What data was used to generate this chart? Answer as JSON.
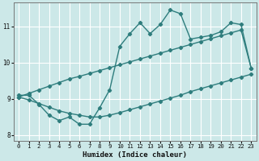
{
  "title": "",
  "xlabel": "Humidex (Indice chaleur)",
  "ylabel": "",
  "background_color": "#cce8e8",
  "grid_color": "#b0d4d4",
  "line_color": "#2e7d7d",
  "x_values": [
    0,
    1,
    2,
    3,
    4,
    5,
    6,
    7,
    8,
    9,
    10,
    11,
    12,
    13,
    14,
    15,
    16,
    17,
    18,
    19,
    20,
    21,
    22,
    23
  ],
  "y_main": [
    9.1,
    9.1,
    8.85,
    8.55,
    8.4,
    8.5,
    8.3,
    8.3,
    8.75,
    9.25,
    10.45,
    10.8,
    11.1,
    10.8,
    11.05,
    11.45,
    11.35,
    10.65,
    10.7,
    10.75,
    10.85,
    11.1,
    11.05,
    9.85
  ],
  "y_upper": [
    9.05,
    9.15,
    9.25,
    9.35,
    9.45,
    9.55,
    9.62,
    9.7,
    9.78,
    9.86,
    9.94,
    10.02,
    10.1,
    10.18,
    10.26,
    10.34,
    10.42,
    10.5,
    10.58,
    10.66,
    10.74,
    10.82,
    10.9,
    9.85
  ],
  "y_lower": [
    9.05,
    8.97,
    8.87,
    8.77,
    8.67,
    8.6,
    8.55,
    8.5,
    8.5,
    8.55,
    8.62,
    8.7,
    8.78,
    8.86,
    8.94,
    9.02,
    9.1,
    9.2,
    9.28,
    9.36,
    9.44,
    9.52,
    9.6,
    9.68
  ],
  "xlim": [
    -0.5,
    23.5
  ],
  "ylim": [
    7.85,
    11.65
  ],
  "yticks": [
    8,
    9,
    10,
    11
  ],
  "xticks": [
    0,
    1,
    2,
    3,
    4,
    5,
    6,
    7,
    8,
    9,
    10,
    11,
    12,
    13,
    14,
    15,
    16,
    17,
    18,
    19,
    20,
    21,
    22,
    23
  ]
}
